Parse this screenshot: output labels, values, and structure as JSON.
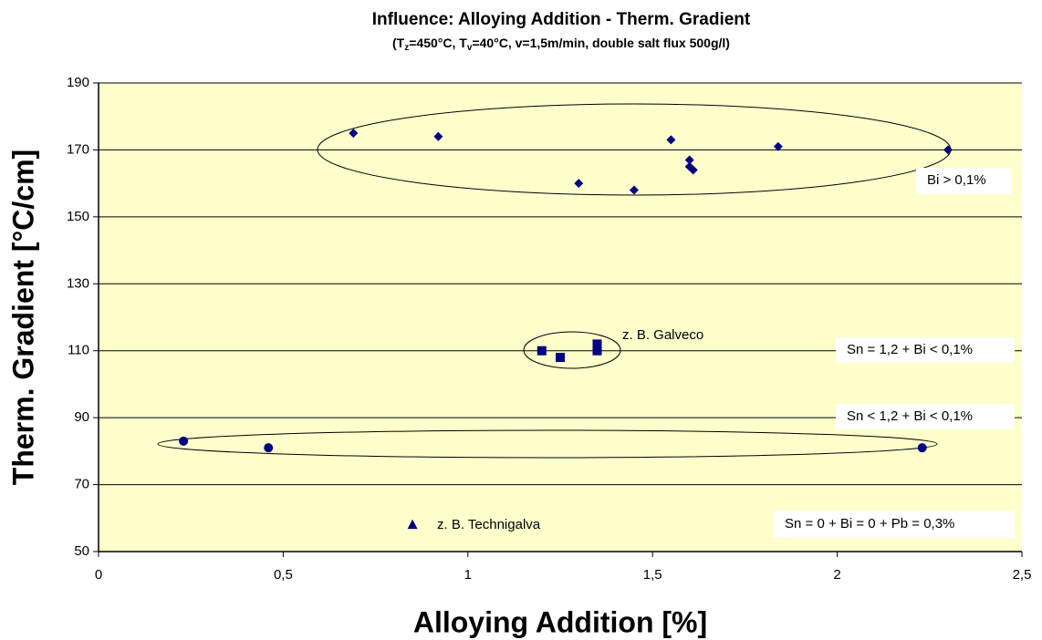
{
  "chart_data": {
    "type": "scatter",
    "title": "Influence: Alloying Addition - Therm. Gradient",
    "subtitle": [
      "(T",
      "z",
      "=450°C, T",
      "v",
      "=40°C, v=1,5m/min, double salt flux 500g/l)"
    ],
    "x_label": "Alloying Addition [%]",
    "y_label": "Therm. Gradient [°C/cm]",
    "xlim": [
      0,
      2.5
    ],
    "ylim": [
      50,
      190
    ],
    "xticks": [
      0,
      {
        "value": 0.5,
        "label": "0,5"
      },
      1,
      {
        "value": 1.5,
        "label": "1,5"
      },
      2,
      {
        "value": 2.5,
        "label": "2,5"
      }
    ],
    "yticks": [
      50,
      70,
      90,
      110,
      130,
      150,
      170,
      190
    ],
    "grid": true,
    "background": "#ffffcc",
    "series": [
      {
        "marker": "diamond",
        "color": "#000080",
        "x": [
          0.69,
          0.92,
          1.3,
          1.45,
          1.55,
          1.6,
          1.6,
          1.61,
          1.84,
          2.3
        ],
        "values": [
          175,
          174,
          160,
          158,
          173,
          167,
          165,
          164,
          171,
          170
        ]
      },
      {
        "marker": "square",
        "color": "#000080",
        "x": [
          1.2,
          1.25,
          1.35,
          1.35
        ],
        "values": [
          110,
          108,
          112,
          110
        ]
      },
      {
        "marker": "circle",
        "color": "#000080",
        "x": [
          0.23,
          0.46,
          2.23
        ],
        "values": [
          83,
          81,
          81
        ]
      },
      {
        "marker": "triangle",
        "color": "#000080",
        "x": [
          0.85
        ],
        "values": [
          58
        ]
      }
    ],
    "annotations": [
      "Bi > 0,1%",
      "z. B. Galveco",
      "Sn = 1,2 + Bi < 0,1%",
      "Sn < 1,2 + Bi < 0,1%",
      "Sn = 0 + Bi = 0 + Pb = 0,3%",
      "z. B. Technigalva"
    ]
  }
}
